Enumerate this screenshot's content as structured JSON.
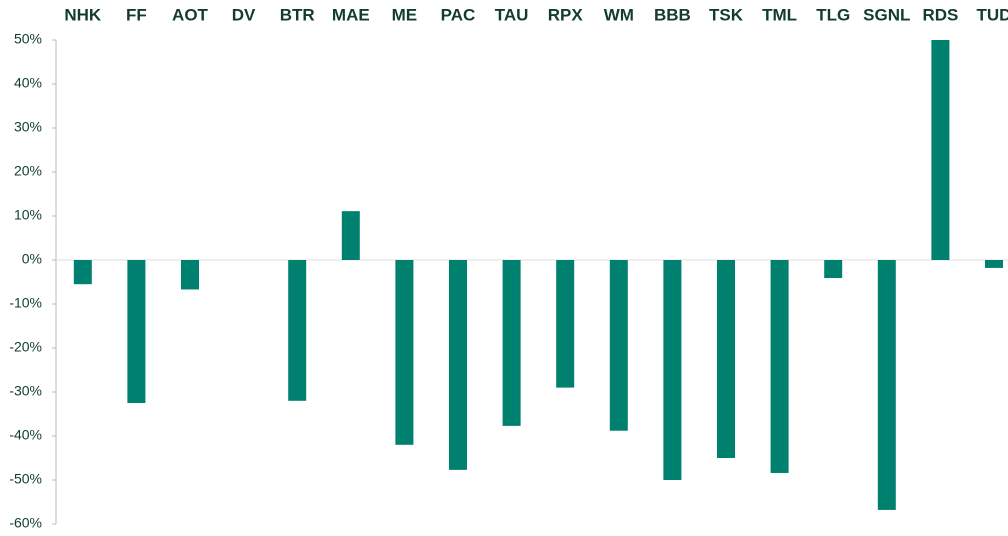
{
  "chart_data": {
    "type": "bar",
    "categories": [
      "NHK",
      "FF",
      "AOT",
      "DV",
      "BTR",
      "MAE",
      "ME",
      "PAC",
      "TAU",
      "RPX",
      "WM",
      "BBB",
      "TSK",
      "TML",
      "TLG",
      "SGNL",
      "RDS",
      "TUD"
    ],
    "values": [
      -5.5,
      -32.5,
      -6.7,
      0,
      -32,
      11.1,
      -42,
      -47.7,
      -37.7,
      -29,
      -38.8,
      -50,
      -45,
      -48.4,
      -4.1,
      -56.8,
      50,
      -1.8
    ],
    "color": "#00806f",
    "ylim": [
      -60,
      50
    ],
    "yticks": [
      {
        "value": -60,
        "label": "-60%"
      },
      {
        "value": -50,
        "label": "-50%"
      },
      {
        "value": -40,
        "label": "-40%"
      },
      {
        "value": -30,
        "label": "-30%"
      },
      {
        "value": -20,
        "label": "-20%"
      },
      {
        "value": -10,
        "label": "-10%"
      },
      {
        "value": 0,
        "label": "0%"
      },
      {
        "value": 10,
        "label": "10%"
      },
      {
        "value": 20,
        "label": "20%"
      },
      {
        "value": 30,
        "label": "30%"
      },
      {
        "value": 40,
        "label": "40%"
      },
      {
        "value": 50,
        "label": "50%"
      }
    ],
    "grid": false
  }
}
